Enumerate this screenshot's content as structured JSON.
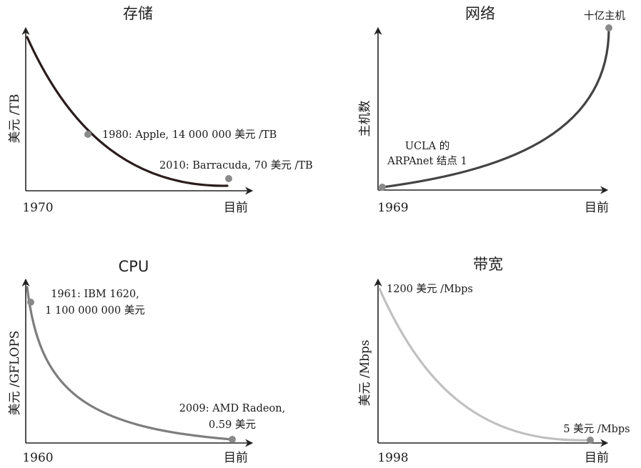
{
  "chart_data": [
    {
      "type": "line",
      "title": "存储",
      "ylabel": "美元 /TB",
      "x_tick_labels": [
        "1970",
        "目前"
      ],
      "curve_shape": "exponential-decay",
      "series_color": "#2a1c1c",
      "points": [
        {
          "label": "1980: Apple, 14 000 000 美元 /TB"
        },
        {
          "label": "2010: Barracuda, 70 美元 /TB"
        }
      ]
    },
    {
      "type": "line",
      "title": "网络",
      "ylabel": "主机数",
      "x_tick_labels": [
        "1969",
        "目前"
      ],
      "curve_shape": "exponential-growth",
      "series_color": "#444444",
      "points": [
        {
          "label_lines": [
            "UCLA 的",
            "ARPAnet 结点 1"
          ]
        },
        {
          "label": "十亿主机"
        }
      ]
    },
    {
      "type": "line",
      "title": "CPU",
      "ylabel": "美元 /GFLOPS",
      "x_tick_labels": [
        "1960",
        "目前"
      ],
      "curve_shape": "steep-decay",
      "series_color": "#7d7d7d",
      "points": [
        {
          "label_lines": [
            "1961: IBM 1620,",
            "1 100 000 000 美元"
          ]
        },
        {
          "label_lines": [
            "2009: AMD Radeon,",
            "0.59 美元"
          ]
        }
      ]
    },
    {
      "type": "line",
      "title": "带宽",
      "ylabel": "美元 /Mbps",
      "x_tick_labels": [
        "1998",
        "目前"
      ],
      "curve_shape": "exponential-decay",
      "series_color": "#c0c0c0",
      "points": [
        {
          "label": "1200 美元 /Mbps"
        },
        {
          "label": "5 美元 /Mbps"
        }
      ]
    }
  ],
  "colors": {
    "axis": "#222222",
    "marker": "#8a8a8a"
  }
}
